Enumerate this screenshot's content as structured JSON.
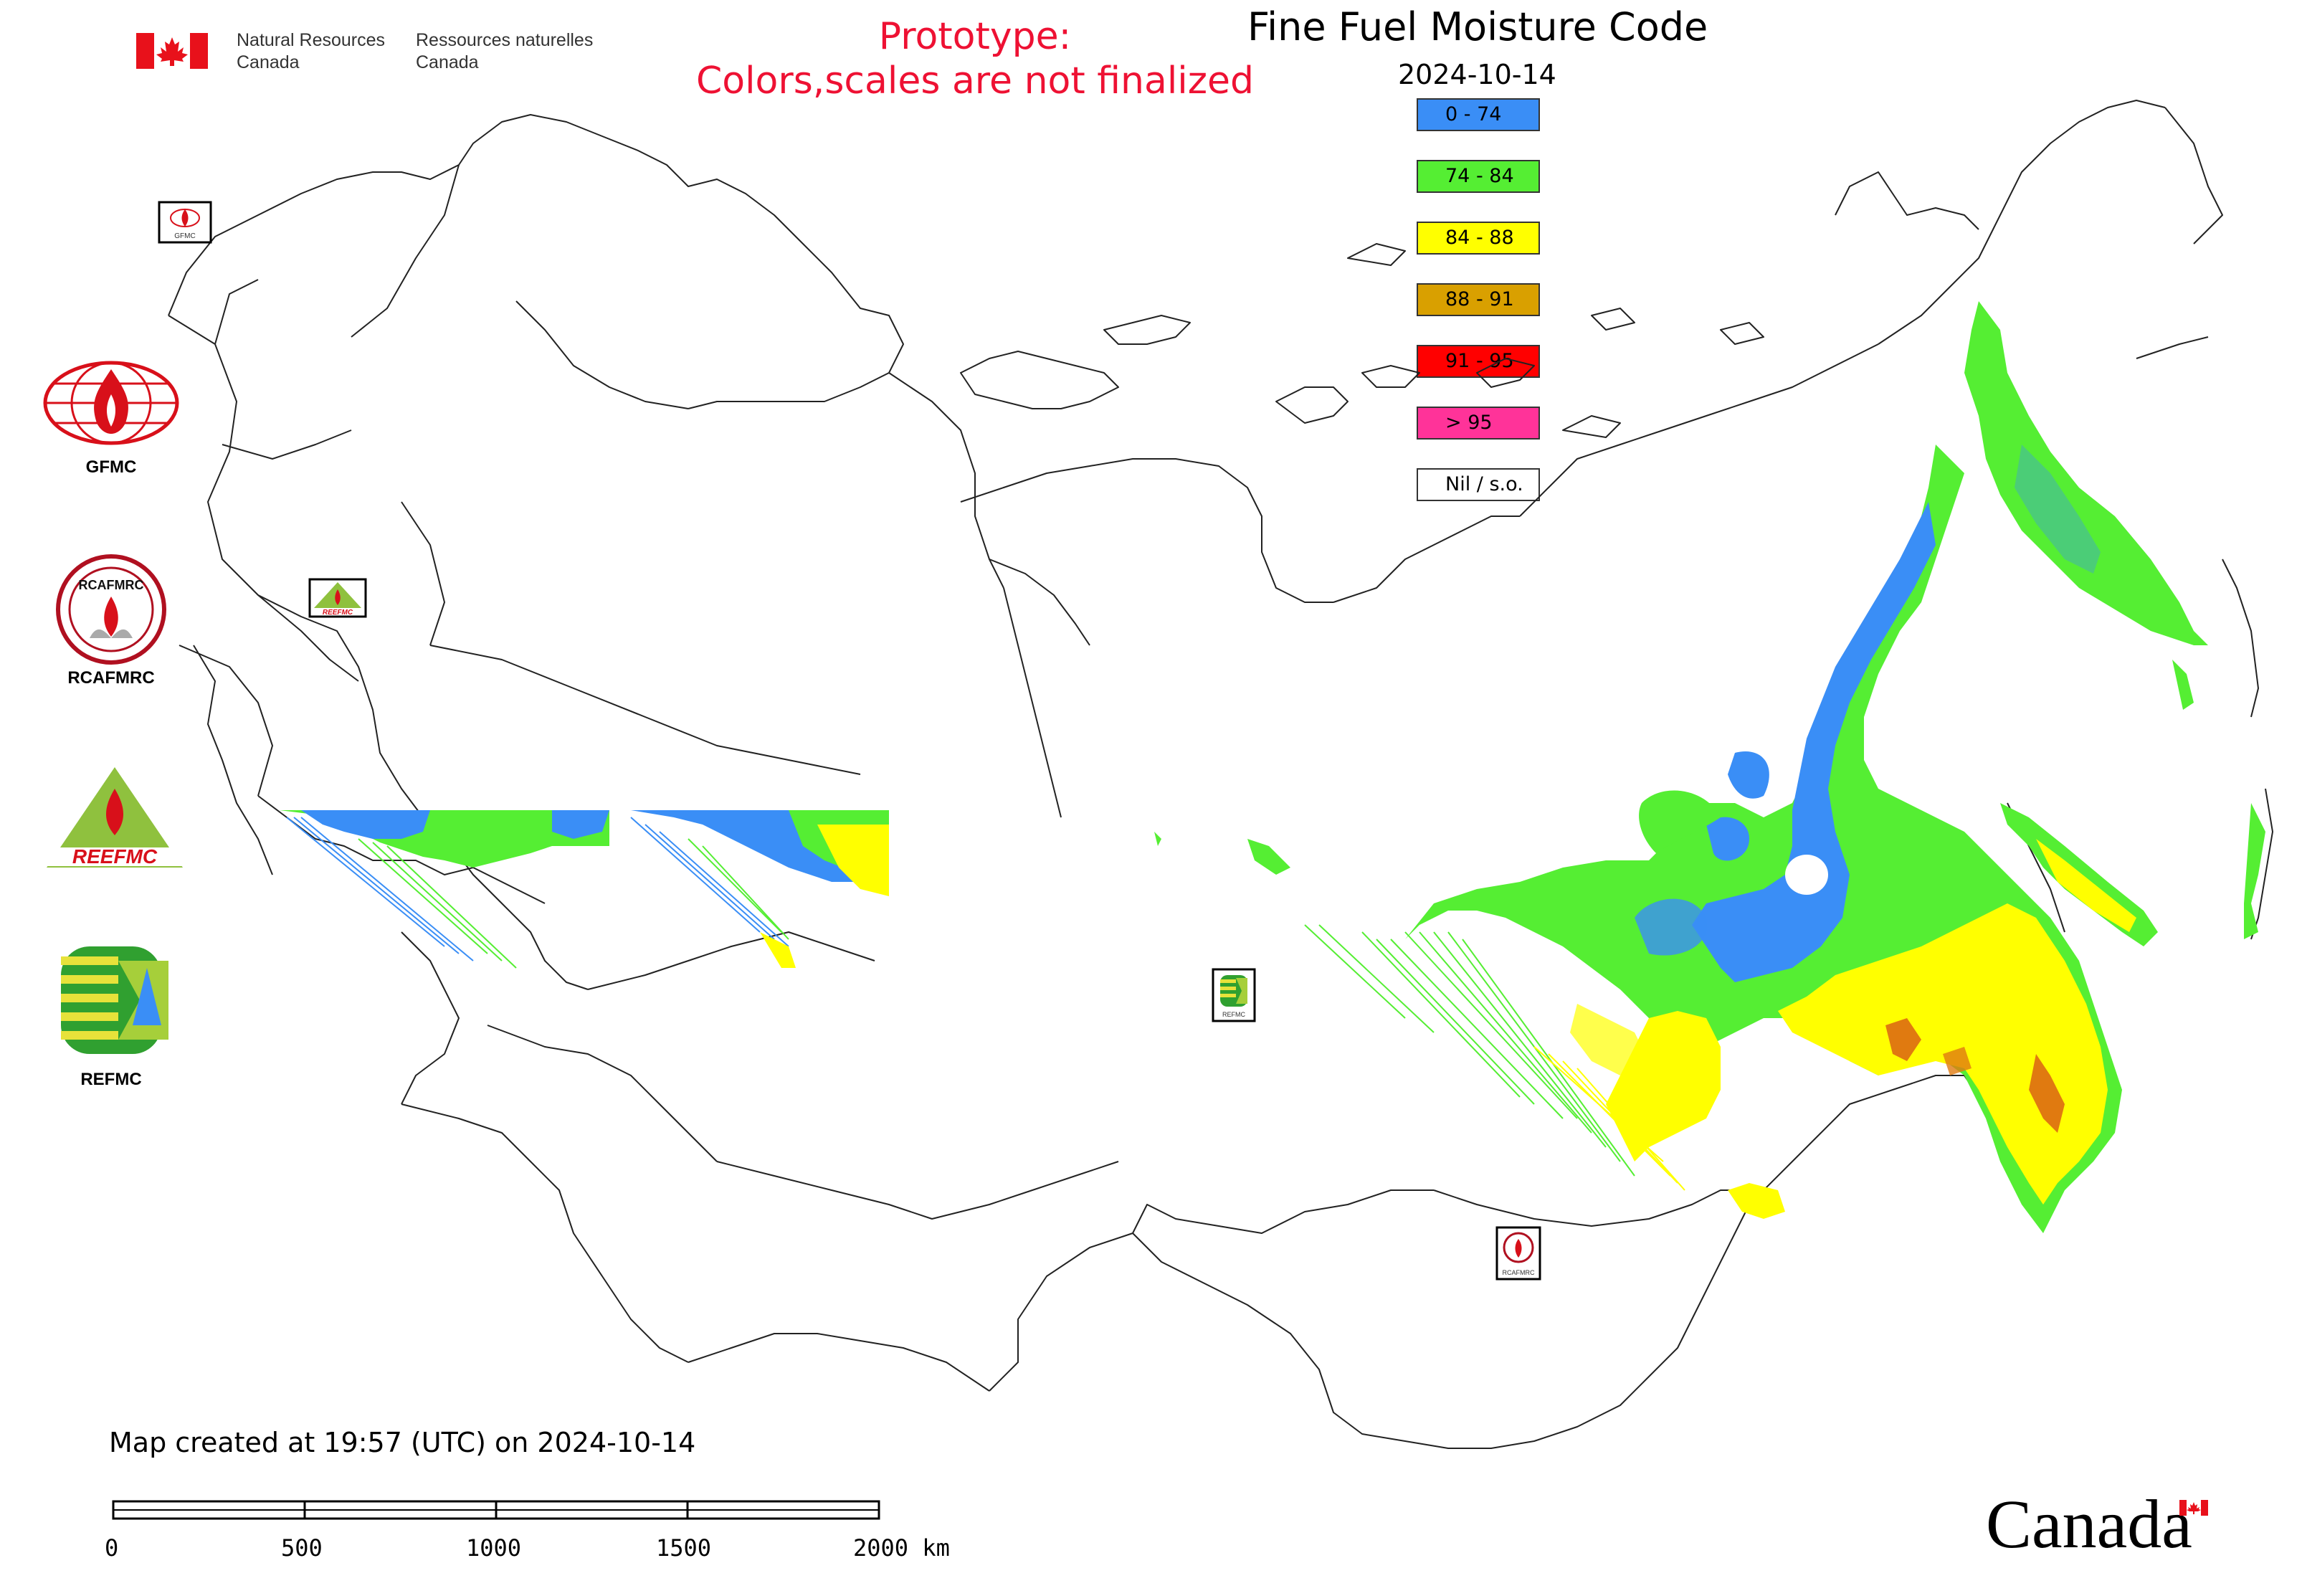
{
  "header": {
    "government": {
      "en_line1": "Natural Resources",
      "en_line2": "Canada",
      "fr_line1": "Ressources naturelles",
      "fr_line2": "Canada"
    },
    "prototype_line1": "Prototype:",
    "prototype_line2": "Colors,scales are not finalized",
    "title": "Fine Fuel Moisture Code",
    "date": "2024-10-14"
  },
  "legend": [
    {
      "label": "0 - 74",
      "color": "#3a8ef6"
    },
    {
      "label": "74 - 84",
      "color": "#55ee33"
    },
    {
      "label": "84 - 88",
      "color": "#ffff00"
    },
    {
      "label": "88 - 91",
      "color": "#d9a000"
    },
    {
      "label": "91 - 95",
      "color": "#ff0000"
    },
    {
      "label": "> 95",
      "color": "#ff3399"
    },
    {
      "label": "Nil / s.o.",
      "color": "#ffffff"
    }
  ],
  "organizations": [
    {
      "label": "GFMC",
      "icon": "gfmc-logo-icon"
    },
    {
      "label": "RCAFMRC",
      "icon": "rcafmrc-logo-icon",
      "logo_text": "RCAFMRC"
    },
    {
      "label": "REEFMC",
      "icon": "reefmc-logo-icon",
      "logo_text": "REEFMC"
    },
    {
      "label": "REFMC",
      "icon": "refmc-logo-icon"
    }
  ],
  "map_markers": [
    {
      "label": "GFMC",
      "icon": "gfmc-logo-icon"
    },
    {
      "label": "REEFMC",
      "icon": "reefmc-logo-icon"
    },
    {
      "label": "REFMC",
      "icon": "refmc-logo-icon"
    },
    {
      "label": "RCAFMRC",
      "icon": "rcafmrc-logo-icon"
    }
  ],
  "footer": {
    "created": "Map created at 19:57 (UTC) on 2024-10-14",
    "scale_labels": [
      "0",
      "500",
      "1000",
      "1500",
      "2000 km"
    ],
    "wordmark": "Canada"
  },
  "colors": {
    "prototype_text": "#ee1133",
    "flag_red": "#e8111b"
  }
}
